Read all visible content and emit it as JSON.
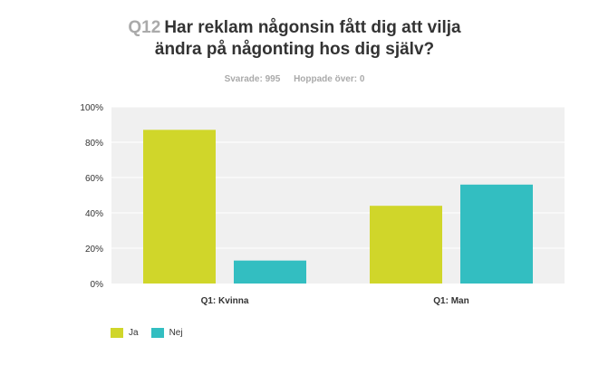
{
  "question": {
    "number": "Q12",
    "line1": "Har reklam någonsin fått dig att vilja",
    "line2": "ändra på någonting hos dig själv?"
  },
  "stats": {
    "answered": "Svarade: 995",
    "skipped": "Hoppade över: 0"
  },
  "colors": {
    "ja": "#d0d62a",
    "nej": "#33bec1",
    "plot_bg": "#f0f0f0",
    "grid": "#ffffff"
  },
  "chart_data": {
    "type": "bar",
    "categories": [
      "Q1: Kvinna",
      "Q1: Man"
    ],
    "series": [
      {
        "name": "Ja",
        "values": [
          87,
          44
        ]
      },
      {
        "name": "Nej",
        "values": [
          13,
          56
        ]
      }
    ],
    "ylim": [
      0,
      100
    ],
    "yticks": [
      "0%",
      "20%",
      "40%",
      "60%",
      "80%",
      "100%"
    ],
    "grid": true,
    "legend": "bottom-left"
  }
}
